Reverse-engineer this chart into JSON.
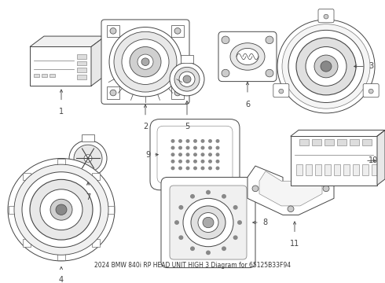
{
  "title": "2024 BMW 840i RP HEAD UNIT HIGH 3 Diagram for 65125B33F94",
  "background_color": "#ffffff",
  "fig_w": 4.9,
  "fig_h": 3.6,
  "dpi": 100
}
